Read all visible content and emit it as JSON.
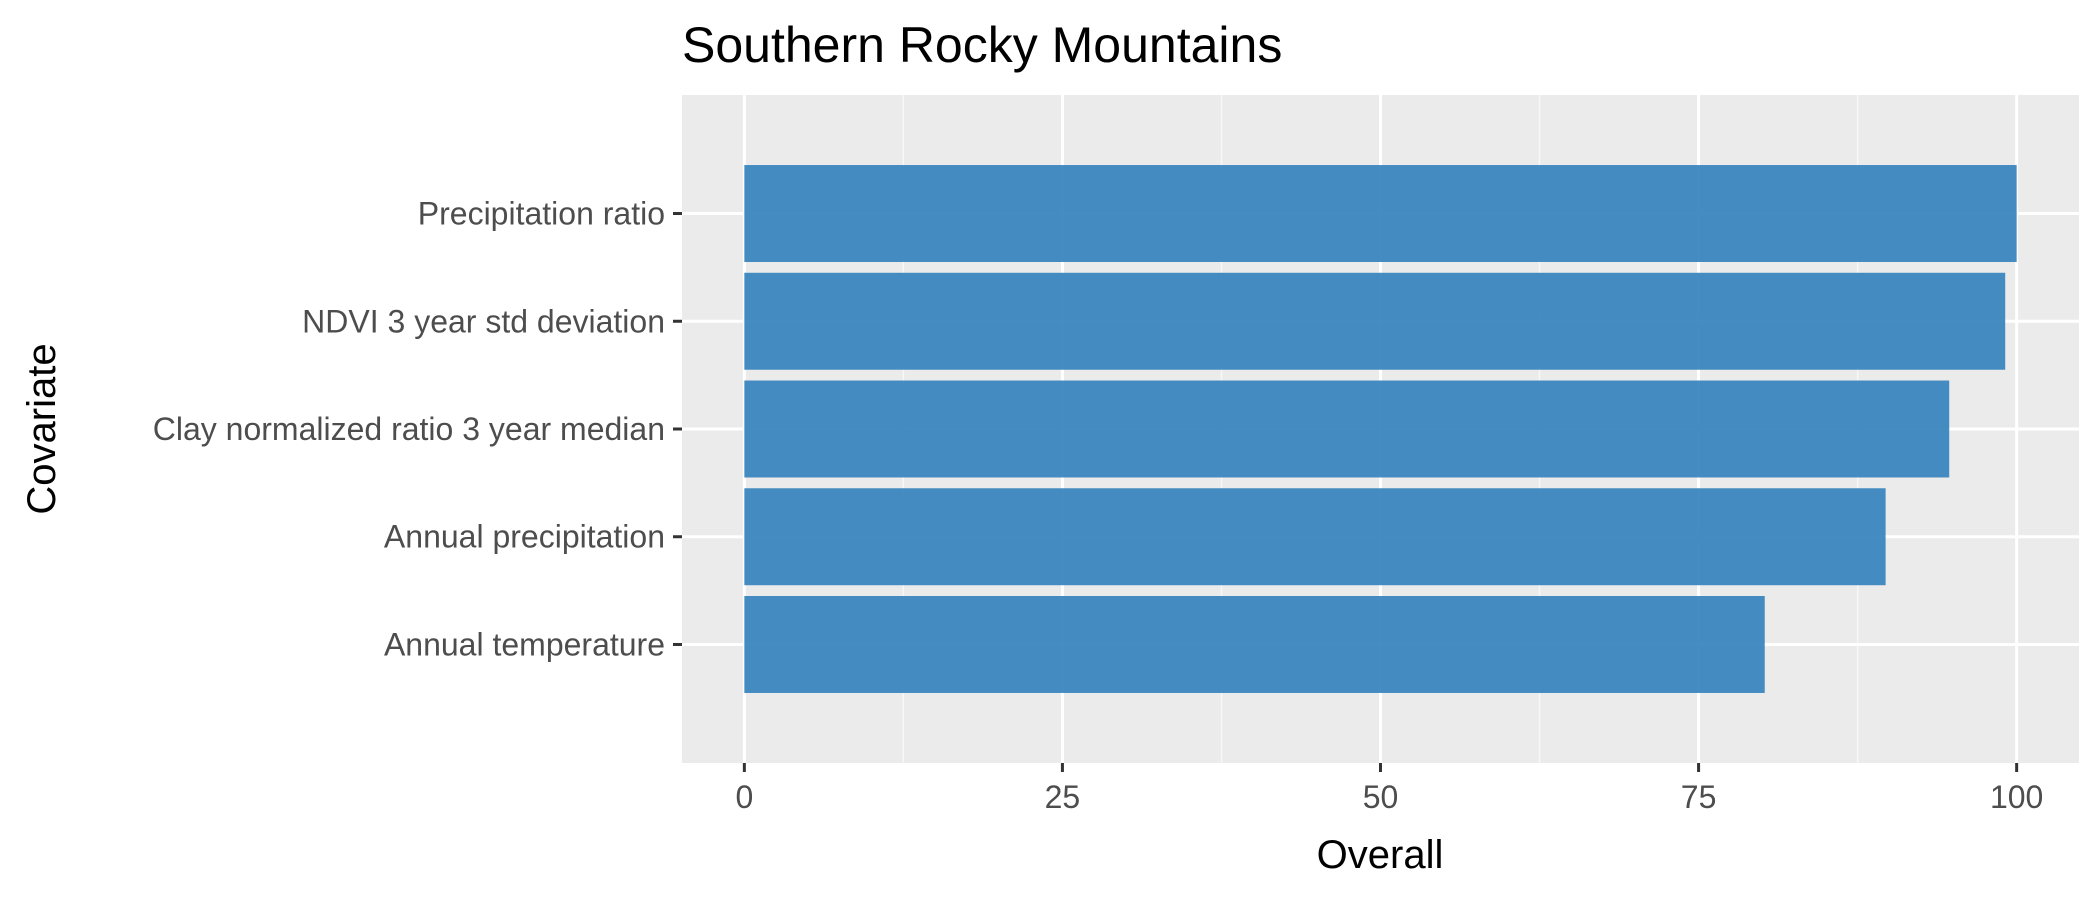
{
  "chart_data": {
    "type": "bar",
    "orientation": "horizontal",
    "title": "Southern Rocky Mountains",
    "xlabel": "Overall",
    "ylabel": "Covariate",
    "categories": [
      "Precipitation ratio",
      "NDVI 3 year std deviation",
      "Clay normalized ratio 3 year median",
      "Annual precipitation",
      "Annual temperature"
    ],
    "values": [
      100,
      99.1,
      94.7,
      89.7,
      80.2
    ],
    "xlim": [
      -4.9,
      104.9
    ],
    "xticks": [
      0,
      25,
      50,
      75,
      100
    ],
    "xtick_labels": [
      "0",
      "25",
      "50",
      "75",
      "100"
    ],
    "grid": true,
    "legend": "none",
    "colors": {
      "bar": "#3a86be",
      "panel_background": "#ebebeb",
      "grid_major": "#ffffff",
      "grid_minor": "#f7f7f7"
    }
  }
}
